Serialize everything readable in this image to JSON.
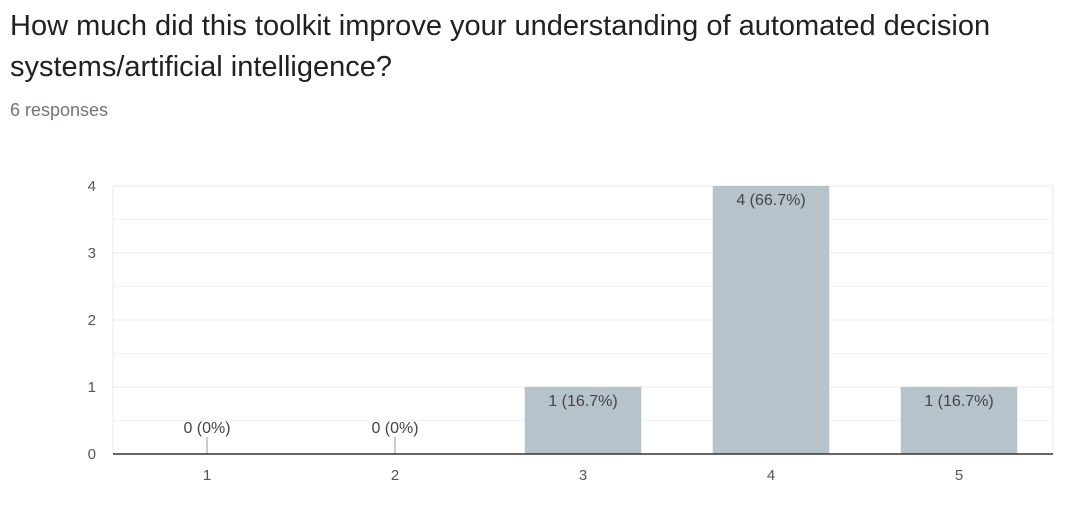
{
  "question": {
    "title": "How much did this toolkit improve your understanding of automated decision systems/artificial intelligence?",
    "responses": "6 responses"
  },
  "colors": {
    "bar": "#b7c3ca",
    "grid": "#e8e8e8",
    "axis": "#333333",
    "label": "#444444",
    "tick": "#555555"
  },
  "chart_data": {
    "type": "bar",
    "title": "",
    "xlabel": "",
    "ylabel": "",
    "categories": [
      "1",
      "2",
      "3",
      "4",
      "5"
    ],
    "values": [
      0,
      0,
      1,
      4,
      1
    ],
    "data_labels": [
      "0 (0%)",
      "0 (0%)",
      "1 (16.7%)",
      "4 (66.7%)",
      "1 (16.7%)"
    ],
    "y_ticks": [
      0,
      1,
      2,
      3,
      4
    ],
    "ylim": [
      0,
      4
    ],
    "grid": true,
    "legend": "none"
  }
}
